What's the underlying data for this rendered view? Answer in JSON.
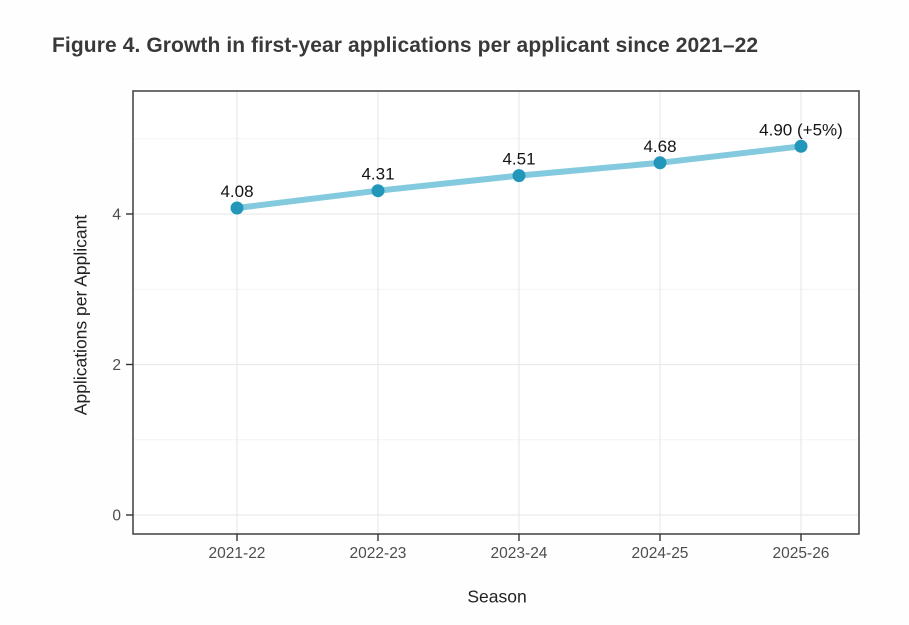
{
  "figure": {
    "caption": "Figure 4. Growth in first-year applications per applicant since 2021–22"
  },
  "chart_data": {
    "type": "line",
    "title": "Figure 4. Growth in first-year applications per applicant since 2021–22",
    "categories": [
      "2021-22",
      "2022-23",
      "2023-24",
      "2024-25",
      "2025-26"
    ],
    "series": [
      {
        "name": "Applications per Applicant",
        "values": [
          4.08,
          4.31,
          4.51,
          4.68,
          4.9
        ]
      }
    ],
    "point_labels": [
      "4.08",
      "4.31",
      "4.51",
      "4.68",
      "4.90 (+5%)"
    ],
    "xlabel": "Season",
    "ylabel": "Applications per Applicant",
    "yticks_major": [
      0,
      2,
      4
    ],
    "ytick_labels": [
      "0",
      "2",
      "4"
    ],
    "yticks_minor": [
      1,
      3,
      5
    ],
    "ylim": [
      -0.25,
      5.64
    ],
    "grid": "on",
    "legend": "none",
    "colors": {
      "line": "#84cadf",
      "point": "#2397ba",
      "grid_major": "#e9e9e9",
      "grid_minor": "#f4f4f4",
      "panel_border": "#4a4a4a",
      "panel_bg": "#ffffff",
      "tick_mark": "#333333",
      "tick_label": "#4d4d4d",
      "data_label": "#141414",
      "title": "#393939"
    }
  }
}
